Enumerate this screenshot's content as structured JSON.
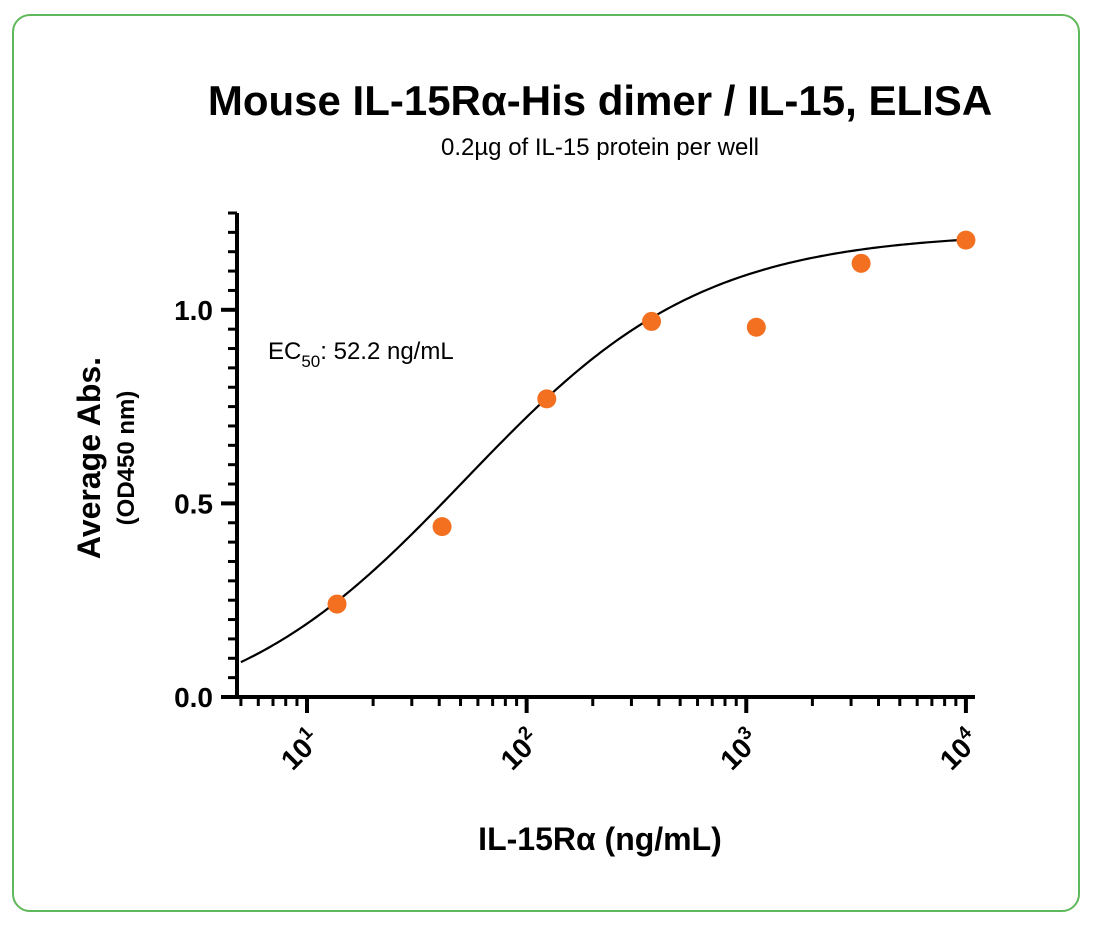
{
  "chart_data": {
    "type": "scatter",
    "title": "Mouse IL-15Rα-His dimer / IL-15, ELISA",
    "subtitle": "0.2µg of IL-15 protein per well",
    "xlabel": "IL-15Rα (ng/mL)",
    "ylabel": "Average Abs.",
    "ylabel_sub": "(OD450 nm)",
    "x_scale": "log10",
    "xlim": [
      4.8,
      11000
    ],
    "ylim": [
      0,
      1.25
    ],
    "x_ticks": [
      {
        "base": "10",
        "exp": "1",
        "value": 10
      },
      {
        "base": "10",
        "exp": "2",
        "value": 100
      },
      {
        "base": "10",
        "exp": "3",
        "value": 1000
      },
      {
        "base": "10",
        "exp": "4",
        "value": 10000
      }
    ],
    "y_ticks": [
      {
        "label": "0.0",
        "value": 0
      },
      {
        "label": "0.5",
        "value": 0.5
      },
      {
        "label": "1.0",
        "value": 1.0
      }
    ],
    "y_minor_step": 0.05,
    "points": {
      "x": [
        13.7,
        41.2,
        123.5,
        370.4,
        1111,
        3333,
        10000
      ],
      "y": [
        0.24,
        0.44,
        0.77,
        0.97,
        0.955,
        1.12,
        1.18
      ]
    },
    "point_color": "#f37021",
    "fit": {
      "model": "4PL",
      "bottom": -0.08,
      "top": 1.2,
      "ec50": 52.2,
      "hill": 0.8,
      "x_start": 5
    },
    "annotation": {
      "prefix": "EC",
      "subscript": "50",
      "suffix": ": 52.2 ng/mL"
    },
    "legend": "none",
    "grid": false
  },
  "frame_color": "#5fb85a"
}
